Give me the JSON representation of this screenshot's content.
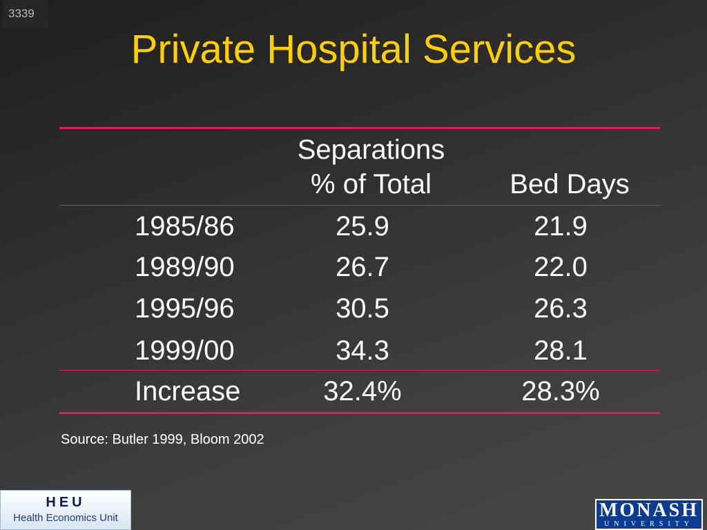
{
  "slide_number": "3339",
  "title": "Private Hospital Services",
  "table": {
    "header_separations_line1": "Separations",
    "header_separations_line2": "% of Total",
    "header_bed_days": "Bed Days",
    "rows": [
      {
        "label": "1985/86",
        "separations": "25.9",
        "bed_days": "21.9"
      },
      {
        "label": "1989/90",
        "separations": "26.7",
        "bed_days": "22.0"
      },
      {
        "label": "1995/96",
        "separations": "30.5",
        "bed_days": "26.3"
      },
      {
        "label": "1999/00",
        "separations": "34.3",
        "bed_days": "28.1"
      }
    ],
    "increase": {
      "label": "Increase",
      "separations": "32.4%",
      "bed_days": "28.3%"
    }
  },
  "source": "Source:  Butler 1999, Bloom 2002",
  "logos": {
    "heu_title": "HEU",
    "heu_subtitle": "Health Economics Unit",
    "monash_name": "MONASH",
    "monash_sub": "UNIVERSITY"
  },
  "colors": {
    "title": "#ffd000",
    "rule": "#d81d62",
    "text": "#ffffff"
  }
}
